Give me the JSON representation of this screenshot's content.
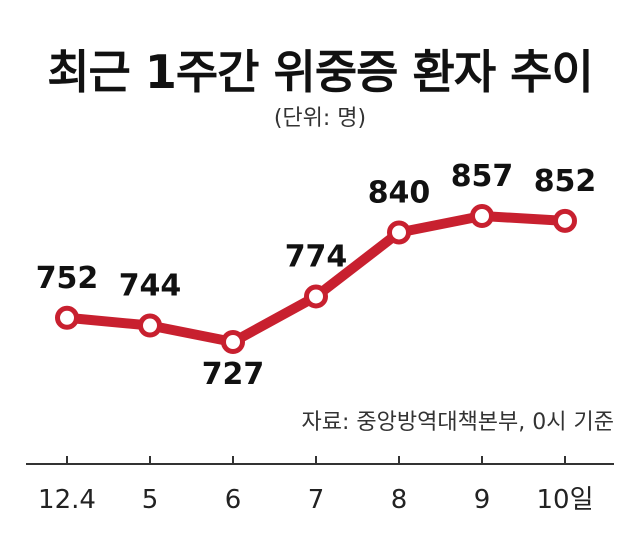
{
  "chart_data": {
    "type": "line",
    "title": "최근 1주간 위중증 환자 추이",
    "unit": "(단위: 명)",
    "source": "자료: 중앙방역대책본부, 0시 기준",
    "categories": [
      "12.4",
      "5",
      "6",
      "7",
      "8",
      "9",
      "10일"
    ],
    "series": [
      {
        "values": [
          752,
          744,
          727,
          774,
          840,
          857,
          852
        ],
        "color": "#c8202f"
      }
    ],
    "label_positions": [
      "above",
      "above",
      "below",
      "above",
      "above",
      "above",
      "above"
    ],
    "xlabel": "",
    "ylabel": "",
    "grid": false,
    "legend": "none",
    "colors": {
      "line": "#c8202f",
      "marker_fill": "#ffffff",
      "axis": "#333333"
    }
  }
}
